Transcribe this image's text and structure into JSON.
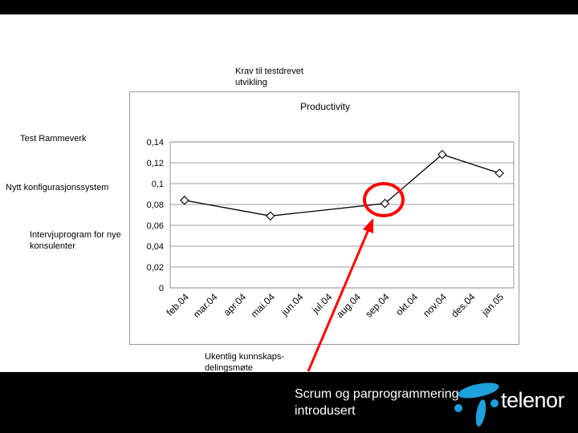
{
  "notes": {
    "testdrevet": "Krav til testdrevet utvikling",
    "rammeverk": "Test Rammeverk",
    "konfig": "Nytt konfigurasjonssystem",
    "intervju": "Intervjuprogram for nye konsulenter",
    "ukentlig": "Ukentlig kunnskaps-delingsmøte"
  },
  "callout": "Scrum og parprogrammering introdusert",
  "logo": {
    "text": "telenor",
    "icon": "telenor-logo-icon",
    "color": "#1ea0dc"
  },
  "colors": {
    "arrow": "#ff0000",
    "circle": "#ff0000",
    "line": "#000000"
  },
  "chart_data": {
    "type": "line",
    "title": "Productivity",
    "categories": [
      "feb.04",
      "mar.04",
      "apr.04",
      "mai.04",
      "jun.04",
      "jul.04",
      "aug.04",
      "sep.04",
      "okt.04",
      "nov.04",
      "des.04",
      "jan.05"
    ],
    "y_ticks": [
      "0",
      "0,02",
      "0,04",
      "0,06",
      "0,08",
      "0,1",
      "0,12",
      "0,14"
    ],
    "ylim": [
      0,
      0.14
    ],
    "grid": true,
    "series": [
      {
        "values": [
          0.084,
          null,
          null,
          0.069,
          null,
          null,
          null,
          0.081,
          null,
          0.128,
          null,
          0.11
        ]
      }
    ],
    "highlight_category": "sep.04"
  }
}
